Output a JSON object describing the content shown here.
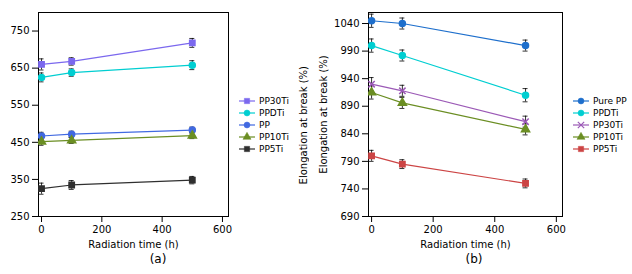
{
  "chart_data": [
    {
      "type": "line",
      "xlabel": "Radiation time (h)",
      "annotation": "Elongation at break (%)",
      "caption": "(a)",
      "x": [
        0,
        100,
        500
      ],
      "xlim": [
        -10,
        620
      ],
      "xticks": [
        0,
        200,
        400,
        600
      ],
      "ylim": [
        250,
        800
      ],
      "yticks": [
        250,
        350,
        450,
        550,
        650,
        750
      ],
      "grid": false,
      "legend": "right",
      "series": [
        {
          "name": "PP30Ti",
          "color": "#7B68EE",
          "marker": "square",
          "values": [
            660,
            668,
            718
          ],
          "yerr": [
            15,
            10,
            12
          ]
        },
        {
          "name": "PPDTi",
          "color": "#00CED1",
          "marker": "circle",
          "values": [
            625,
            638,
            658
          ],
          "yerr": [
            12,
            10,
            12
          ]
        },
        {
          "name": "PP",
          "color": "#4169E1",
          "marker": "circle",
          "values": [
            467,
            472,
            483
          ],
          "yerr": [
            10,
            8,
            8
          ]
        },
        {
          "name": "PP10Ti",
          "color": "#6B8E23",
          "marker": "triangle",
          "values": [
            452,
            455,
            468
          ],
          "yerr": [
            10,
            8,
            8
          ]
        },
        {
          "name": "PP5Ti",
          "color": "#2F2F2F",
          "marker": "square",
          "values": [
            325,
            335,
            348
          ],
          "yerr": [
            15,
            12,
            10
          ]
        }
      ]
    },
    {
      "type": "line",
      "xlabel": "Radiation time (h)",
      "ylabel": "Elongation at break (%)",
      "caption": "(b)",
      "x": [
        0,
        100,
        500
      ],
      "xlim": [
        -10,
        620
      ],
      "xticks": [
        0,
        200,
        400,
        600
      ],
      "ylim": [
        690,
        1060
      ],
      "yticks": [
        690,
        740,
        790,
        840,
        890,
        940,
        990,
        1040
      ],
      "grid": false,
      "legend": "right",
      "series": [
        {
          "name": "Pure PP",
          "color": "#1E6FCC",
          "marker": "circle",
          "values": [
            1045,
            1040,
            1000
          ],
          "yerr": [
            12,
            10,
            10
          ]
        },
        {
          "name": "PPDTi",
          "color": "#00CED1",
          "marker": "circle",
          "values": [
            1000,
            982,
            910
          ],
          "yerr": [
            12,
            10,
            12
          ]
        },
        {
          "name": "PP30Ti",
          "color": "#9B59B6",
          "marker": "x",
          "values": [
            930,
            918,
            862
          ],
          "yerr": [
            12,
            10,
            10
          ]
        },
        {
          "name": "PP10Ti",
          "color": "#6B8E23",
          "marker": "triangle",
          "values": [
            915,
            896,
            848
          ],
          "yerr": [
            12,
            10,
            10
          ]
        },
        {
          "name": "PP5Ti",
          "color": "#CC4444",
          "marker": "square",
          "values": [
            800,
            785,
            750
          ],
          "yerr": [
            10,
            8,
            8
          ]
        }
      ]
    }
  ]
}
